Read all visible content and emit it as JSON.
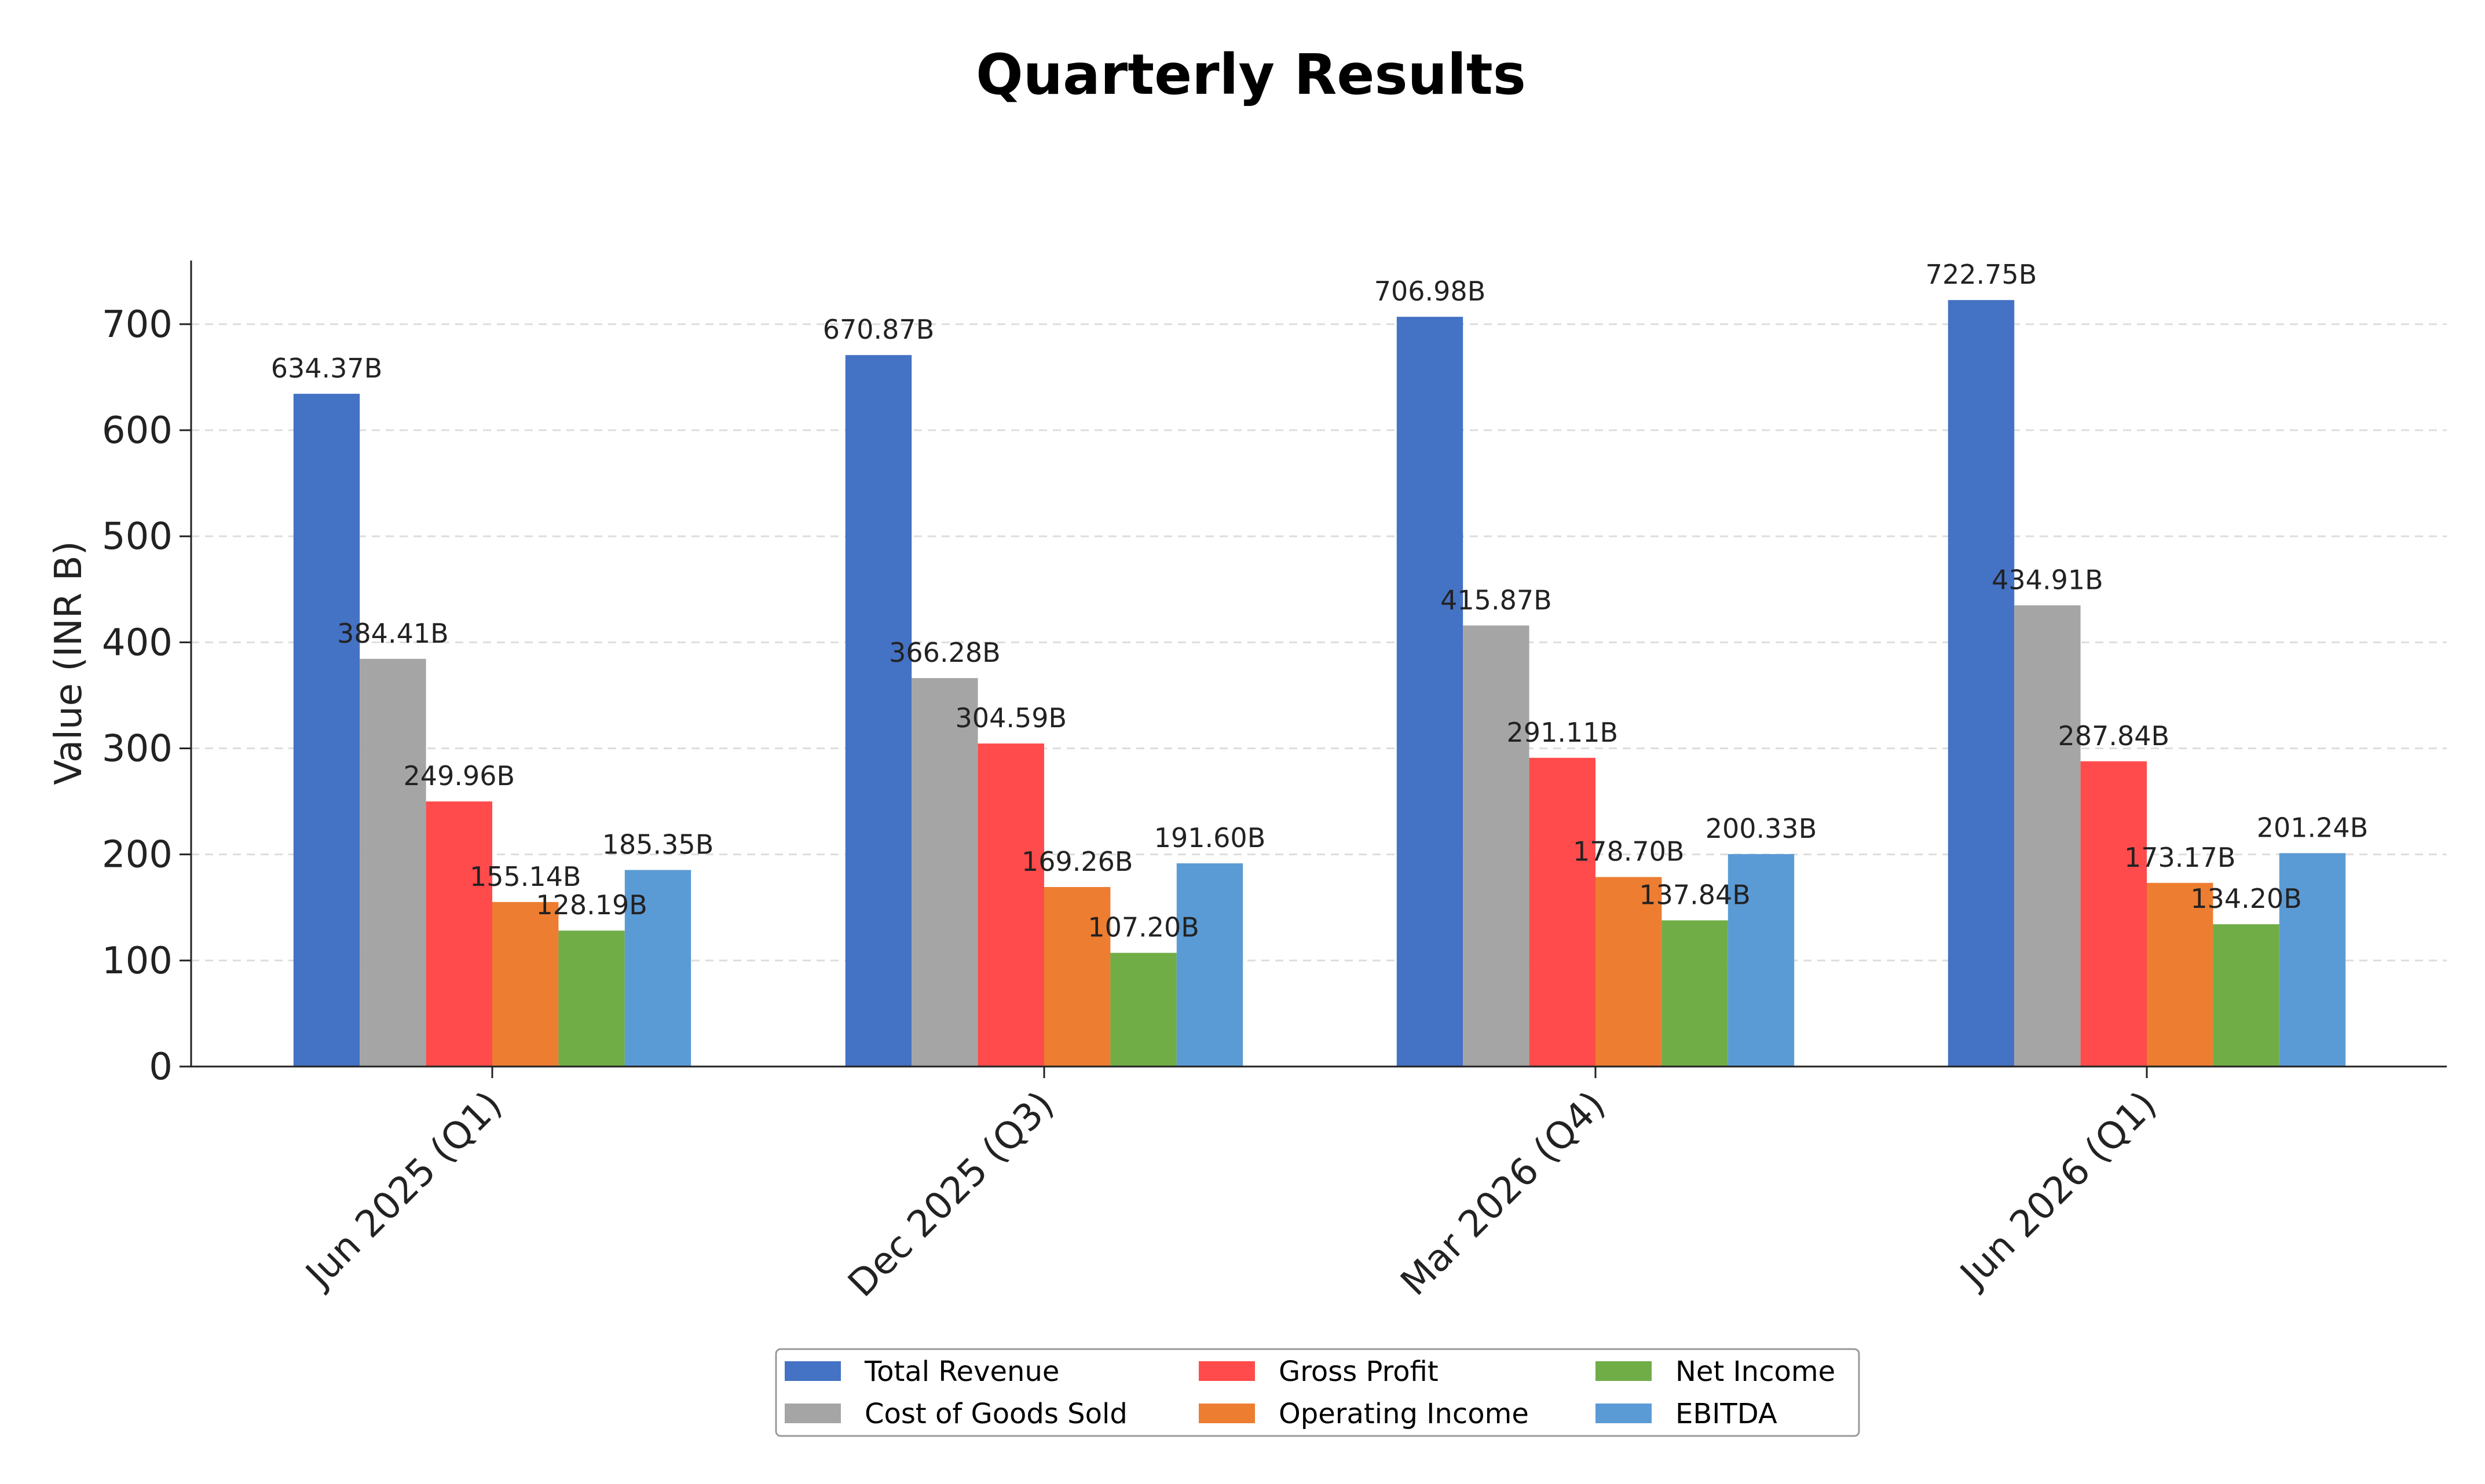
{
  "chart_data": {
    "type": "bar",
    "title": "Quarterly Results",
    "xlabel": "",
    "ylabel": "Value (INR B)",
    "categories": [
      "Jun 2025 (Q1)",
      "Dec 2025 (Q3)",
      "Mar 2026 (Q4)",
      "Jun 2026 (Q1)"
    ],
    "ylim": [
      0,
      760
    ],
    "yticks": [
      0,
      100,
      200,
      300,
      400,
      500,
      600,
      700
    ],
    "grid": "y-dashed",
    "legend_position": "bottom-center",
    "value_suffix": "B",
    "series": [
      {
        "name": "Total Revenue",
        "color": "#4472C4",
        "values": [
          634.37,
          670.87,
          706.98,
          722.75
        ]
      },
      {
        "name": "Cost of Goods Sold",
        "color": "#A5A5A5",
        "values": [
          384.41,
          366.28,
          415.87,
          434.91
        ]
      },
      {
        "name": "Gross Profit",
        "color": "#FF4B4B",
        "values": [
          249.96,
          304.59,
          291.11,
          287.84
        ]
      },
      {
        "name": "Operating Income",
        "color": "#ED7D31",
        "values": [
          155.14,
          169.26,
          178.7,
          173.17
        ]
      },
      {
        "name": "Net Income",
        "color": "#70AD47",
        "values": [
          128.19,
          107.2,
          137.84,
          134.2
        ]
      },
      {
        "name": "EBITDA",
        "color": "#5B9BD5",
        "values": [
          185.35,
          191.6,
          200.33,
          201.24
        ]
      }
    ]
  }
}
